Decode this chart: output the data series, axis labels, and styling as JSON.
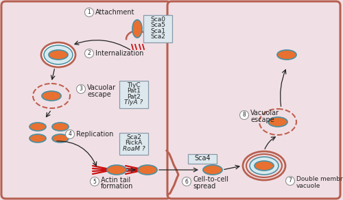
{
  "bg_color": "#f0e0e5",
  "cell_border_color": "#b86050",
  "bacterium_fill": "#e87030",
  "bacterium_border": "#5090a0",
  "vacuole_fill": "#d8eaf0",
  "vacuole_border": "#5090a0",
  "dashed_vacuole_border": "#c06050",
  "box_fill": "#dde8ee",
  "box_border": "#8898a8",
  "label_color": "#222222",
  "arrow_color": "#222222",
  "actin_color": "#cc1111",
  "box1_lines": [
    "Sca0",
    "Sca5",
    "Sca1",
    "Sca2"
  ],
  "box2_lines": [
    "TlyC",
    "Pat1",
    "Pat2",
    "TlyA ?"
  ],
  "box3_lines": [
    "Sca2",
    "RickA",
    "RoaM ?"
  ],
  "box4_lines": [
    "Sca4"
  ]
}
